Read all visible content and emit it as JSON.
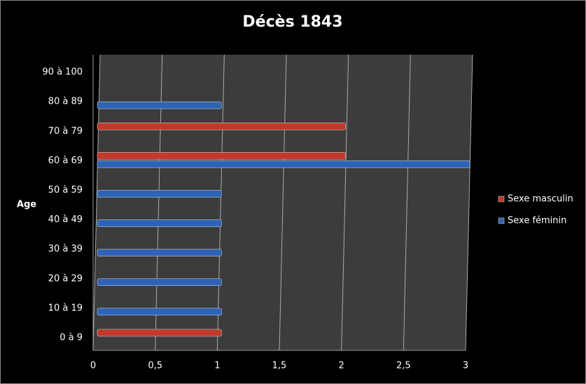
{
  "chart_data": {
    "type": "bar",
    "orientation": "horizontal",
    "title": "Décès 1843",
    "y_label": "Age",
    "categories": [
      "0 à 9",
      "10 à 19",
      "20 à 29",
      "30 à 39",
      "40 à 49",
      "50 à 59",
      "60 à 69",
      "70 à 79",
      "80 à 89",
      "90 à 100"
    ],
    "series": [
      {
        "name": "Sexe masculin",
        "color": "#c0392b",
        "values": [
          1,
          null,
          null,
          null,
          null,
          null,
          2,
          2,
          null,
          null
        ]
      },
      {
        "name": "Sexe féminin",
        "color": "#2e64b8",
        "values": [
          null,
          1,
          1,
          1,
          1,
          1,
          3,
          null,
          1,
          null
        ]
      }
    ],
    "xlim": [
      0,
      3
    ],
    "xticks": [
      0,
      {
        "value": 0.5,
        "label": "0,5"
      },
      1,
      {
        "value": 1.5,
        "label": "1,5"
      },
      2,
      {
        "value": 2.5,
        "label": "2,5"
      },
      3
    ],
    "grid": true,
    "legend": "right"
  }
}
